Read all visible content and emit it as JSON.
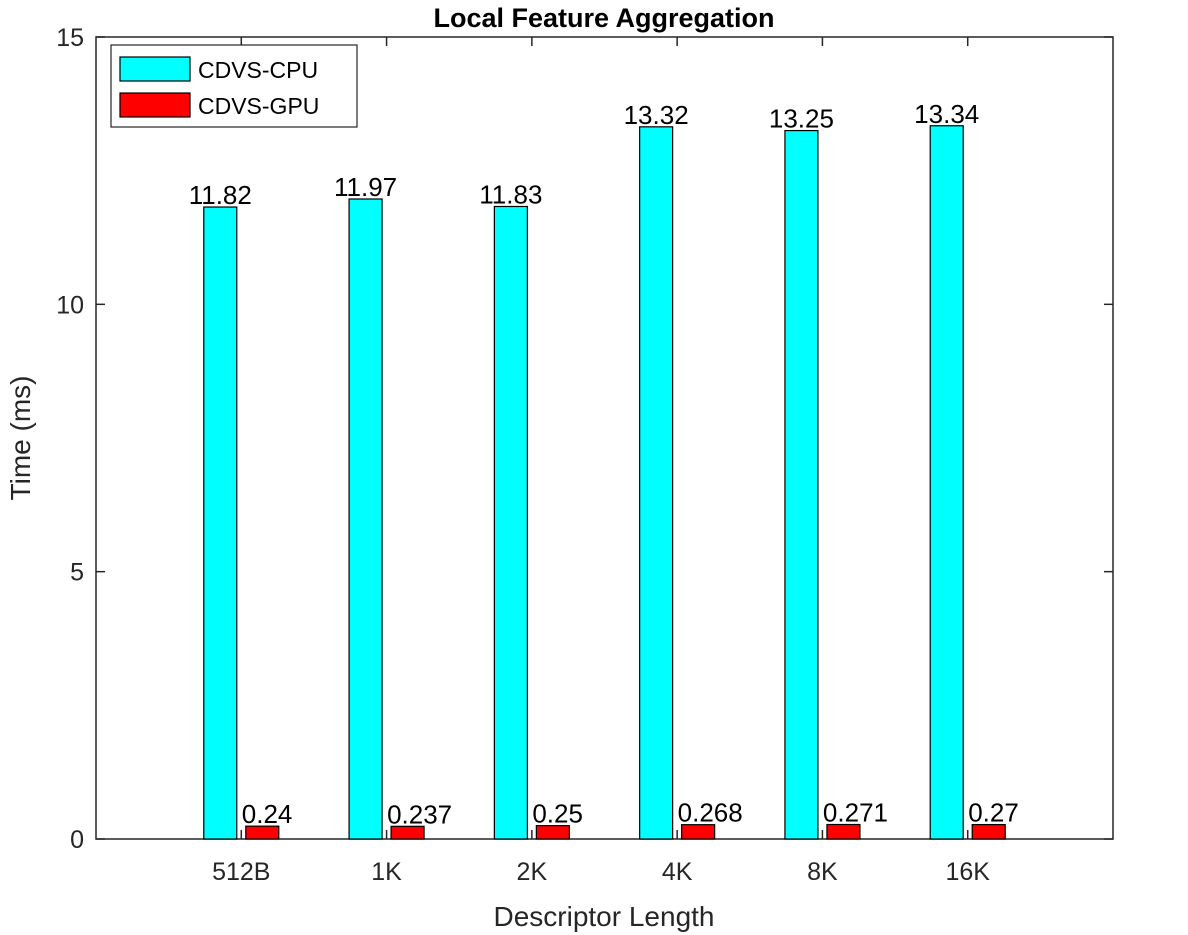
{
  "chart_data": {
    "type": "bar",
    "title": "Local Feature Aggregation",
    "xlabel": "Descriptor Length",
    "ylabel": "Time (ms)",
    "categories": [
      "512B",
      "1K",
      "2K",
      "4K",
      "8K",
      "16K"
    ],
    "ylim": [
      0,
      15
    ],
    "yticks": [
      0,
      5,
      10,
      15
    ],
    "grid": false,
    "legend_position": "top-left",
    "series": [
      {
        "name": "CDVS-CPU",
        "color": "#00FFFF",
        "values": [
          11.82,
          11.97,
          11.83,
          13.32,
          13.25,
          13.34
        ],
        "labels": [
          "11.82",
          "11.97",
          "11.83",
          "13.32",
          "13.25",
          "13.34"
        ]
      },
      {
        "name": "CDVS-GPU",
        "color": "#FF0000",
        "values": [
          0.24,
          0.237,
          0.25,
          0.268,
          0.271,
          0.27
        ],
        "labels": [
          "0.24",
          "0.237",
          "0.25",
          "0.268",
          "0.271",
          "0.27"
        ]
      }
    ]
  }
}
